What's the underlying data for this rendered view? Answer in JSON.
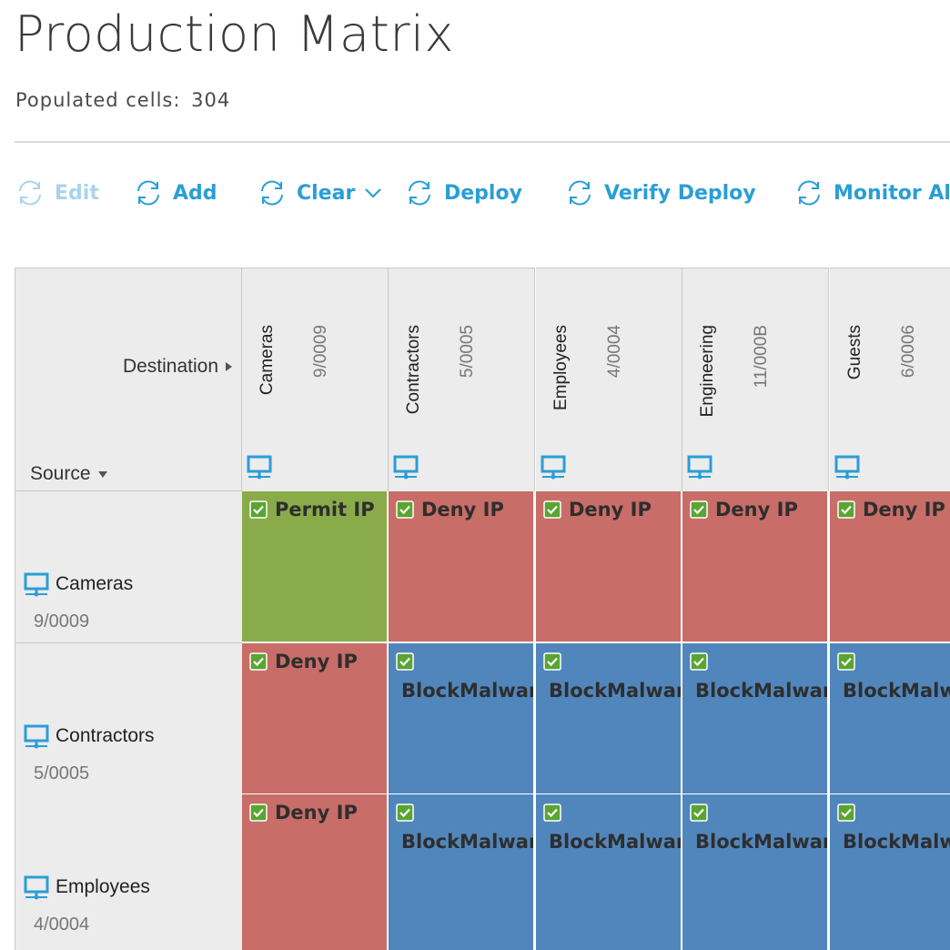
{
  "page": {
    "title": "Production Matrix",
    "populated_label": "Populated cells:",
    "populated_count": "304"
  },
  "toolbar": {
    "buttons": [
      {
        "label": "Edit",
        "icon": "refresh-icon",
        "enabled": false
      },
      {
        "label": "Add",
        "icon": "refresh-icon",
        "enabled": true
      },
      {
        "label": "Clear",
        "icon": "refresh-icon",
        "enabled": true,
        "has_dropdown": true
      },
      {
        "label": "Deploy",
        "icon": "refresh-icon",
        "enabled": true
      },
      {
        "label": "Verify Deploy",
        "icon": "refresh-icon",
        "enabled": true
      },
      {
        "label": "Monitor Al",
        "icon": "refresh-icon",
        "enabled": true
      }
    ]
  },
  "matrix": {
    "destination_label": "Destination",
    "source_label": "Source",
    "columns": [
      {
        "name": "Cameras",
        "code": "9/0009"
      },
      {
        "name": "Contractors",
        "code": "5/0005"
      },
      {
        "name": "Employees",
        "code": "4/0004"
      },
      {
        "name": "Engineering",
        "code": "11/000B"
      },
      {
        "name": "Guests",
        "code": "6/0006"
      }
    ],
    "rows": [
      {
        "name": "Cameras",
        "code": "9/0009",
        "cells": [
          {
            "policy": "Permit IP",
            "type": "permit"
          },
          {
            "policy": "Deny IP",
            "type": "deny"
          },
          {
            "policy": "Deny IP",
            "type": "deny"
          },
          {
            "policy": "Deny IP",
            "type": "deny"
          },
          {
            "policy": "Deny IP",
            "type": "deny"
          }
        ]
      },
      {
        "name": "Contractors",
        "code": "5/0005",
        "cells": [
          {
            "policy": "Deny IP",
            "type": "deny"
          },
          {
            "policy": "BlockMalware",
            "type": "block"
          },
          {
            "policy": "BlockMalware",
            "type": "block"
          },
          {
            "policy": "BlockMalware",
            "type": "block"
          },
          {
            "policy": "BlockMalware",
            "type": "block"
          }
        ]
      },
      {
        "name": "Employees",
        "code": "4/0004",
        "cells": [
          {
            "policy": "Deny IP",
            "type": "deny"
          },
          {
            "policy": "BlockMalware",
            "type": "block"
          },
          {
            "policy": "BlockMalware",
            "type": "block"
          },
          {
            "policy": "BlockMalware",
            "type": "block"
          },
          {
            "policy": "BlockMalware",
            "type": "block"
          }
        ]
      }
    ],
    "colors": {
      "permit": "#8aab4a",
      "deny": "#c86d67",
      "block": "#5186bd",
      "accent": "#2a9ed6",
      "check": "#5aa532"
    }
  }
}
